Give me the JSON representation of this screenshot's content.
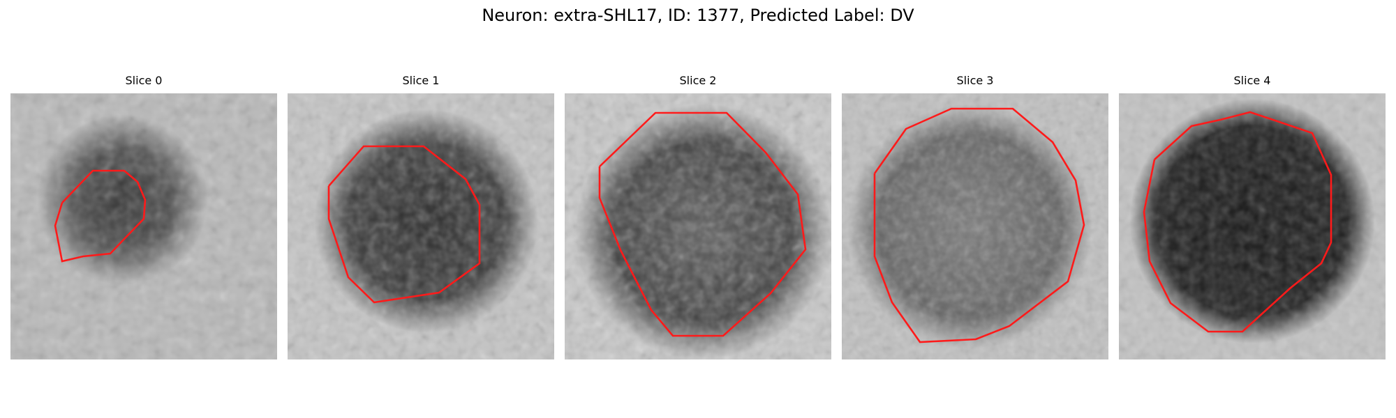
{
  "figure": {
    "title": "Neuron: extra-SHL17, ID: 1377, Predicted Label: DV",
    "contour_color": "#ff1a1a",
    "slices": [
      {
        "title": "Slice 0",
        "appearance": "small-dark-blob-light-surround"
      },
      {
        "title": "Slice 1",
        "appearance": "dark-textured-blob"
      },
      {
        "title": "Slice 2",
        "appearance": "large-textured-blob"
      },
      {
        "title": "Slice 3",
        "appearance": "large-gray-textured-blob"
      },
      {
        "title": "Slice 4",
        "appearance": "large-very-dark-blob"
      }
    ]
  }
}
